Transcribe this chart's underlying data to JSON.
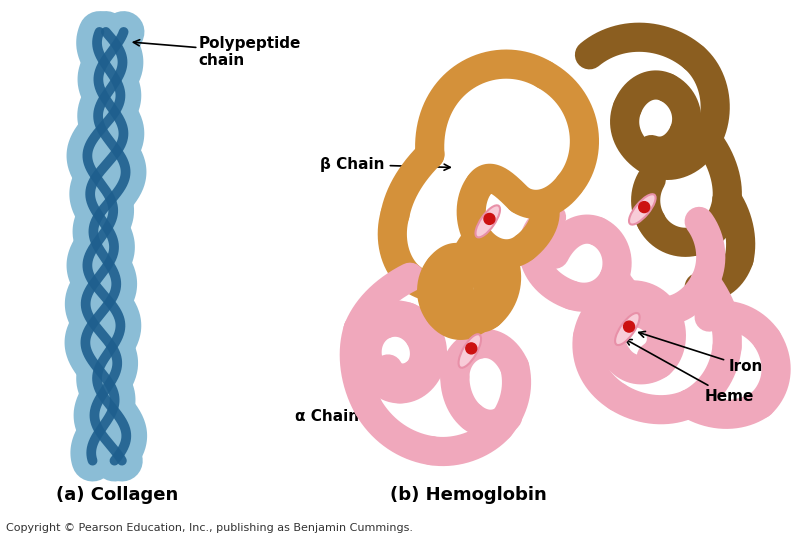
{
  "background_color": "#ffffff",
  "title_a": "(a) Collagen",
  "title_b": "(b) Hemoglobin",
  "copyright": "Copyright © Pearson Education, Inc., publishing as Benjamin Cummings.",
  "label_polypeptide": "Polypeptide\nchain",
  "label_beta": "β Chain",
  "label_alpha": "α Chain",
  "label_iron": "Iron",
  "label_heme": "Heme",
  "collagen_light_blue": "#8bbdd6",
  "collagen_dark_blue": "#1e5f8e",
  "hemo_orange": "#d4913a",
  "hemo_brown": "#8b5e20",
  "hemo_pink": "#f0a8bc",
  "heme_color": "#f8ccd8",
  "heme_edge": "#e890a8",
  "iron_color": "#cc1111",
  "title_fontsize": 13,
  "label_fontsize": 11,
  "copyright_fontsize": 8
}
